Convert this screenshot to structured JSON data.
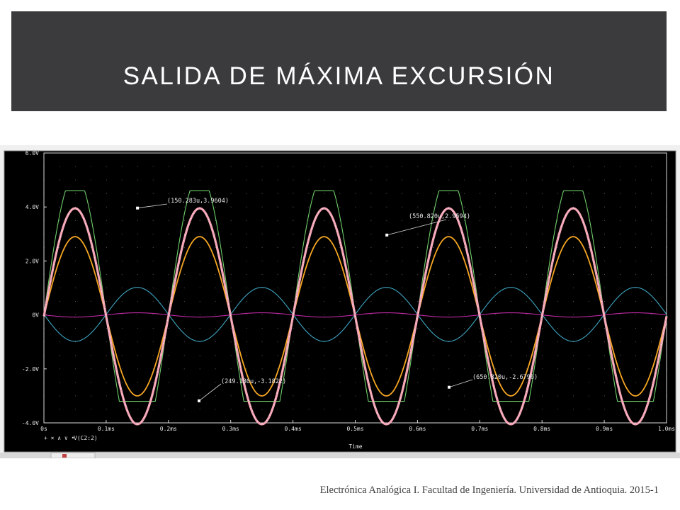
{
  "slide": {
    "title": "SALIDA DE MÁXIMA EXCURSIÓN",
    "footer": "Electrónica Analógica I.  Facultad de Ingeniería. Universidad de Antioquia.  2015-1"
  },
  "colors": {
    "title_bg": "#3b3b3d",
    "plot_bg": "#000000",
    "green": "#6fce6a",
    "pink": "#f4a5b6",
    "orange": "#f6a623",
    "cyan": "#3ea6c2",
    "magenta": "#c02aa6"
  },
  "chart_data": {
    "type": "line",
    "xlabel": "Time",
    "xlim": [
      0,
      1.0
    ],
    "ylim": [
      -4.0,
      6.0
    ],
    "x_ticks": [
      {
        "v": 0,
        "label": "0s"
      },
      {
        "v": 0.1,
        "label": "0.1ms"
      },
      {
        "v": 0.2,
        "label": "0.2ms"
      },
      {
        "v": 0.3,
        "label": "0.3ms"
      },
      {
        "v": 0.4,
        "label": "0.4ms"
      },
      {
        "v": 0.5,
        "label": "0.5ms"
      },
      {
        "v": 0.6,
        "label": "0.6ms"
      },
      {
        "v": 0.7,
        "label": "0.7ms"
      },
      {
        "v": 0.8,
        "label": "0.8ms"
      },
      {
        "v": 0.9,
        "label": "0.9ms"
      },
      {
        "v": 1.0,
        "label": "1.0ms"
      }
    ],
    "y_ticks": [
      {
        "v": -4,
        "label": "-4.0V"
      },
      {
        "v": -2,
        "label": "-2.0V"
      },
      {
        "v": 0,
        "label": "0V"
      },
      {
        "v": 2,
        "label": "2.0V"
      },
      {
        "v": 4,
        "label": "4.0V"
      },
      {
        "v": 6,
        "label": "6.0V"
      }
    ],
    "frequency_khz": 5,
    "series": [
      {
        "color_key": "green",
        "amplitude": 5.2,
        "clip_high": 4.6,
        "clip_low": -3.2
      },
      {
        "color_key": "pink",
        "amplitude": 4.0,
        "offset": -0.05,
        "thick": true
      },
      {
        "color_key": "orange",
        "amplitude": 2.95,
        "offset": -0.05
      },
      {
        "color_key": "cyan",
        "amplitude": 1.0,
        "offset": 0.02,
        "inverted": true
      },
      {
        "color_key": "magenta",
        "amplitude": 0.08,
        "offset": 0.0,
        "inverted": true
      }
    ],
    "legend": {
      "markers": [
        "+",
        "×",
        "∧",
        "∨",
        "•"
      ],
      "label": "V(C2:2)"
    },
    "annotations": [
      {
        "text": "(150.283u,3.9604)",
        "x": 0.150283,
        "y": 3.9604
      },
      {
        "text": "(550.820u,2.9594)",
        "x": 0.55082,
        "y": 2.9594
      },
      {
        "text": "(249.180u,-3.1822)",
        "x": 0.24918,
        "y": -3.1822
      },
      {
        "text": "(650.820u,-2.6796)",
        "x": 0.65082,
        "y": -2.6796
      }
    ]
  }
}
